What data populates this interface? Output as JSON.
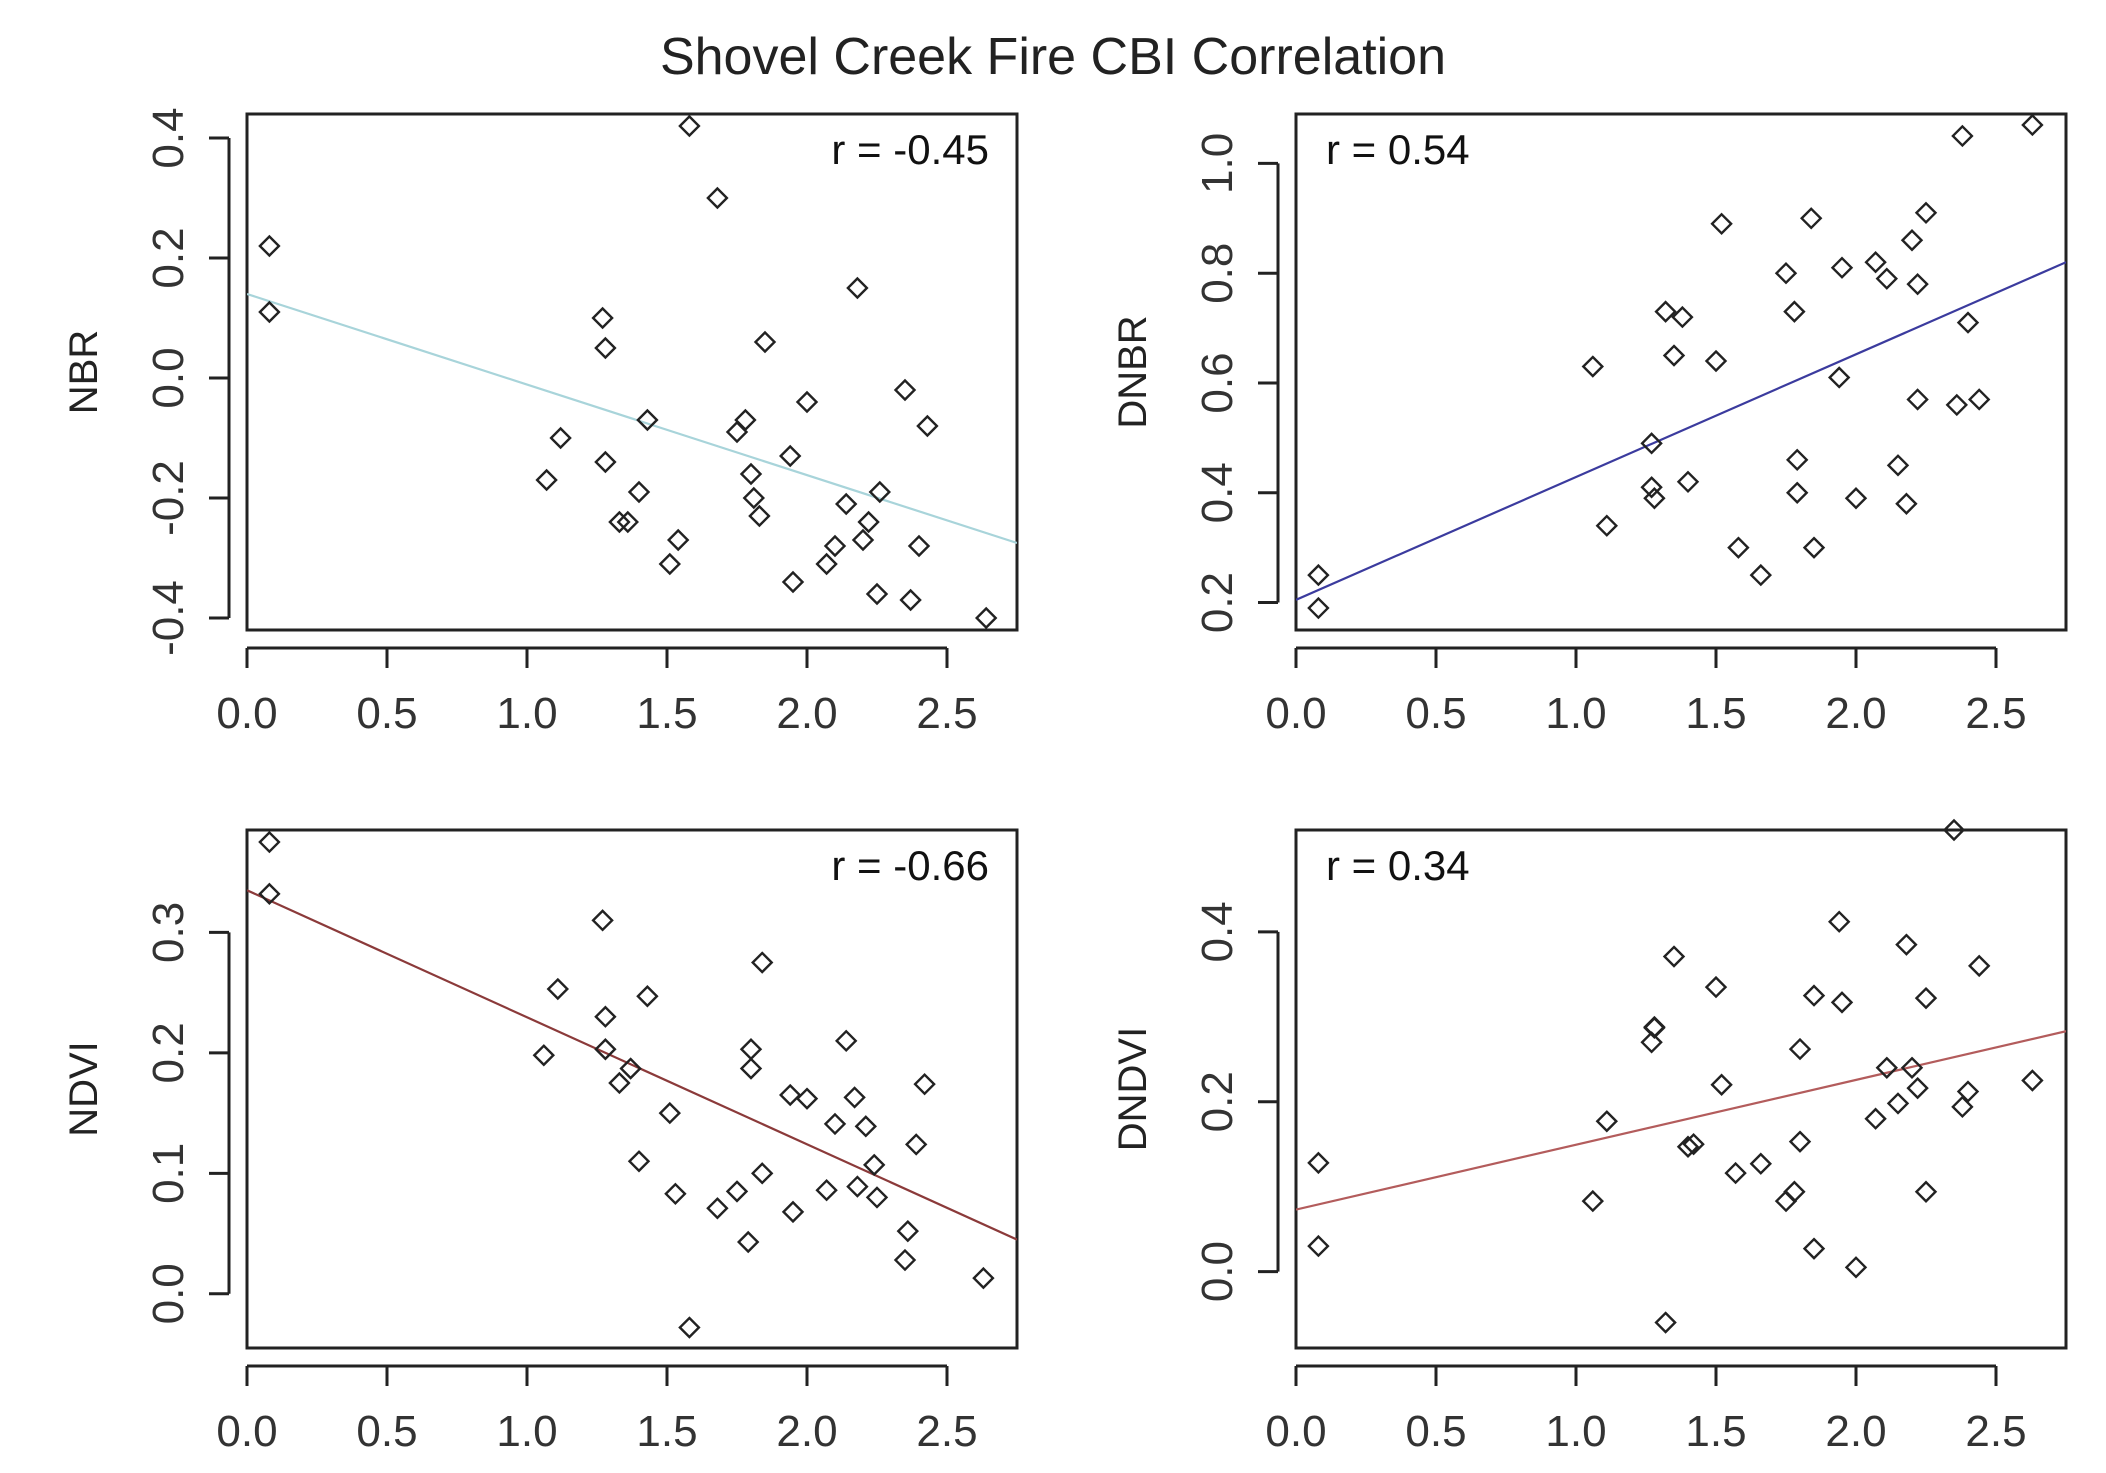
{
  "figure_title": "Shovel Creek Fire CBI Correlation",
  "chart_data": [
    {
      "type": "scatter",
      "id": "nbr",
      "title": "",
      "xlabel": "",
      "ylabel": "NBR",
      "annotation": "r = -0.45",
      "annotation_position": "top-right",
      "xlim": [
        0,
        2.75
      ],
      "ylim": [
        -0.42,
        0.44
      ],
      "xticks": [
        "0.0",
        "0.5",
        "1.0",
        "1.5",
        "2.0",
        "2.5"
      ],
      "yticks": [
        "-0.4",
        "-0.2",
        "0.0",
        "0.2",
        "0.4"
      ],
      "fit_line": {
        "x": [
          0,
          2.75
        ],
        "y": [
          0.14,
          -0.275
        ],
        "color": "#a8d4da"
      },
      "x": [
        0.08,
        0.08,
        1.07,
        1.12,
        1.27,
        1.28,
        1.28,
        1.33,
        1.36,
        1.4,
        1.43,
        1.51,
        1.54,
        1.58,
        1.68,
        1.75,
        1.78,
        1.8,
        1.81,
        1.83,
        1.85,
        1.94,
        1.95,
        2.0,
        2.07,
        2.1,
        2.14,
        2.18,
        2.2,
        2.22,
        2.25,
        2.26,
        2.35,
        2.37,
        2.4,
        2.43,
        2.64
      ],
      "y": [
        0.22,
        0.11,
        -0.17,
        -0.1,
        0.1,
        0.05,
        -0.14,
        -0.24,
        -0.24,
        -0.19,
        -0.07,
        -0.31,
        -0.27,
        0.42,
        0.3,
        -0.09,
        -0.07,
        -0.16,
        -0.2,
        -0.23,
        0.06,
        -0.13,
        -0.34,
        -0.04,
        -0.31,
        -0.28,
        -0.21,
        0.15,
        -0.27,
        -0.24,
        -0.36,
        -0.19,
        -0.02,
        -0.37,
        -0.28,
        -0.08,
        -0.4
      ]
    },
    {
      "type": "scatter",
      "id": "dnbr",
      "title": "",
      "xlabel": "",
      "ylabel": "DNBR",
      "annotation": "r = 0.54",
      "annotation_position": "top-left",
      "xlim": [
        0,
        2.75
      ],
      "ylim": [
        0.15,
        1.09
      ],
      "xticks": [
        "0.0",
        "0.5",
        "1.0",
        "1.5",
        "2.0",
        "2.5"
      ],
      "yticks": [
        "0.2",
        "0.4",
        "0.6",
        "0.8",
        "1.0"
      ],
      "fit_line": {
        "x": [
          0,
          2.75
        ],
        "y": [
          0.205,
          0.82
        ],
        "color": "#3b3b9e"
      },
      "x": [
        0.08,
        0.08,
        1.06,
        1.11,
        1.27,
        1.27,
        1.28,
        1.32,
        1.35,
        1.38,
        1.4,
        1.5,
        1.52,
        1.58,
        1.66,
        1.75,
        1.78,
        1.79,
        1.79,
        1.84,
        1.85,
        1.94,
        1.95,
        2.0,
        2.07,
        2.11,
        2.15,
        2.18,
        2.2,
        2.22,
        2.22,
        2.25,
        2.36,
        2.38,
        2.4,
        2.44,
        2.63
      ],
      "y": [
        0.25,
        0.19,
        0.63,
        0.34,
        0.49,
        0.41,
        0.39,
        0.73,
        0.65,
        0.72,
        0.42,
        0.64,
        0.89,
        0.3,
        0.25,
        0.8,
        0.73,
        0.46,
        0.4,
        0.9,
        0.3,
        0.61,
        0.81,
        0.39,
        0.82,
        0.79,
        0.45,
        0.38,
        0.86,
        0.78,
        0.57,
        0.91,
        0.56,
        1.05,
        0.71,
        0.57,
        1.07
      ]
    },
    {
      "type": "scatter",
      "id": "ndvi",
      "title": "",
      "xlabel": "",
      "ylabel": "NDVI",
      "annotation": "r = -0.66",
      "annotation_position": "top-right",
      "xlim": [
        0,
        2.75
      ],
      "ylim": [
        -0.045,
        0.385
      ],
      "xticks": [
        "0.0",
        "0.5",
        "1.0",
        "1.5",
        "2.0",
        "2.5"
      ],
      "yticks": [
        "0.0",
        "0.1",
        "0.2",
        "0.3"
      ],
      "fit_line": {
        "x": [
          0,
          2.75
        ],
        "y": [
          0.335,
          0.045
        ],
        "color": "#8b3a3a"
      },
      "x": [
        0.08,
        0.08,
        1.06,
        1.11,
        1.27,
        1.28,
        1.28,
        1.33,
        1.37,
        1.4,
        1.43,
        1.51,
        1.53,
        1.58,
        1.68,
        1.75,
        1.79,
        1.8,
        1.8,
        1.84,
        1.84,
        1.94,
        1.95,
        2.0,
        2.07,
        2.1,
        2.14,
        2.17,
        2.18,
        2.21,
        2.24,
        2.25,
        2.35,
        2.36,
        2.39,
        2.42,
        2.63
      ],
      "y": [
        0.375,
        0.332,
        0.198,
        0.253,
        0.31,
        0.23,
        0.203,
        0.175,
        0.187,
        0.11,
        0.247,
        0.15,
        0.083,
        -0.028,
        0.071,
        0.085,
        0.043,
        0.203,
        0.187,
        0.1,
        0.275,
        0.165,
        0.068,
        0.162,
        0.086,
        0.141,
        0.21,
        0.163,
        0.089,
        0.139,
        0.107,
        0.08,
        0.028,
        0.052,
        0.124,
        0.174,
        0.013
      ]
    },
    {
      "type": "scatter",
      "id": "dndvi",
      "title": "",
      "xlabel": "",
      "ylabel": "DNDVI",
      "annotation": "r = 0.34",
      "annotation_position": "top-left",
      "xlim": [
        0,
        2.75
      ],
      "ylim": [
        -0.09,
        0.52
      ],
      "xticks": [
        "0.0",
        "0.5",
        "1.0",
        "1.5",
        "2.0",
        "2.5"
      ],
      "yticks": [
        "0.0",
        "0.2",
        "0.4"
      ],
      "fit_line": {
        "x": [
          0,
          2.75
        ],
        "y": [
          0.073,
          0.283
        ],
        "color": "#b35c5c"
      },
      "x": [
        0.08,
        0.08,
        1.06,
        1.11,
        1.27,
        1.28,
        1.28,
        1.32,
        1.35,
        1.4,
        1.42,
        1.5,
        1.52,
        1.57,
        1.66,
        1.75,
        1.78,
        1.8,
        1.8,
        1.85,
        1.85,
        1.94,
        1.95,
        2.0,
        2.07,
        2.11,
        2.15,
        2.18,
        2.2,
        2.22,
        2.25,
        2.25,
        2.35,
        2.38,
        2.4,
        2.44,
        2.63
      ],
      "y": [
        0.128,
        0.03,
        0.083,
        0.177,
        0.27,
        0.288,
        0.287,
        -0.06,
        0.371,
        0.147,
        0.15,
        0.335,
        0.22,
        0.116,
        0.127,
        0.083,
        0.094,
        0.153,
        0.262,
        0.027,
        0.325,
        0.412,
        0.317,
        0.005,
        0.18,
        0.24,
        0.198,
        0.385,
        0.24,
        0.216,
        0.322,
        0.094,
        0.52,
        0.194,
        0.212,
        0.36,
        0.225
      ]
    }
  ]
}
